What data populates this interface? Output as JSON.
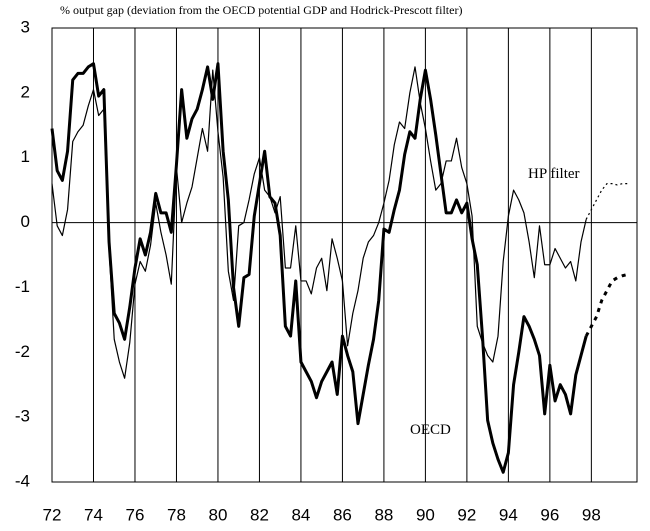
{
  "chart_data": {
    "type": "line",
    "title": "% output gap (deviation from the OECD potential GDP and Hodrick-Prescott filter)",
    "x": [
      72,
      72.25,
      72.5,
      72.75,
      73,
      73.25,
      73.5,
      73.75,
      74,
      74.25,
      74.5,
      74.75,
      75,
      75.25,
      75.5,
      75.75,
      76,
      76.25,
      76.5,
      76.75,
      77,
      77.25,
      77.5,
      77.75,
      78,
      78.25,
      78.5,
      78.75,
      79,
      79.25,
      79.5,
      79.75,
      80,
      80.25,
      80.5,
      80.75,
      81,
      81.25,
      81.5,
      81.75,
      82,
      82.25,
      82.5,
      82.75,
      83,
      83.25,
      83.5,
      83.75,
      84,
      84.25,
      84.5,
      84.75,
      85,
      85.25,
      85.5,
      85.75,
      86,
      86.25,
      86.5,
      86.75,
      87,
      87.25,
      87.5,
      87.75,
      88,
      88.25,
      88.5,
      88.75,
      89,
      89.25,
      89.5,
      89.75,
      90,
      90.25,
      90.5,
      90.75,
      91,
      91.25,
      91.5,
      91.75,
      92,
      92.25,
      92.5,
      92.75,
      93,
      93.25,
      93.5,
      93.75,
      94,
      94.25,
      94.5,
      94.75,
      95,
      95.25,
      95.5,
      95.75,
      96,
      96.25,
      96.5,
      96.75,
      97,
      97.25,
      97.5,
      97.75
    ],
    "series": [
      {
        "name": "OECD",
        "color": "#000000",
        "width": 3,
        "style": "solid",
        "values": [
          1.45,
          0.8,
          0.65,
          1.1,
          2.2,
          2.3,
          2.3,
          2.4,
          2.45,
          1.95,
          2.05,
          -0.3,
          -1.4,
          -1.55,
          -1.8,
          -1.3,
          -0.7,
          -0.25,
          -0.5,
          -0.15,
          0.45,
          0.15,
          0.15,
          -0.15,
          0.9,
          2.05,
          1.3,
          1.6,
          1.75,
          2.05,
          2.4,
          1.9,
          2.45,
          1.1,
          0.35,
          -1.0,
          -1.6,
          -0.85,
          -0.8,
          0.1,
          0.6,
          1.1,
          0.4,
          0.3,
          -0.2,
          -1.6,
          -1.75,
          -0.9,
          -2.15,
          -2.3,
          -2.45,
          -2.7,
          -2.45,
          -2.3,
          -2.15,
          -2.65,
          -1.75,
          -2.05,
          -2.3,
          -3.1,
          -2.65,
          -2.2,
          -1.8,
          -1.2,
          -0.1,
          -0.15,
          0.2,
          0.5,
          1.05,
          1.4,
          1.3,
          1.9,
          2.35,
          1.9,
          1.35,
          0.75,
          0.15,
          0.15,
          0.35,
          0.15,
          0.3,
          -0.25,
          -0.65,
          -1.75,
          -3.05,
          -3.4,
          -3.65,
          -3.85,
          -3.55,
          -2.5,
          -2.0,
          -1.45,
          -1.6,
          -1.8,
          -2.05,
          -2.95,
          -2.2,
          -2.75,
          -2.5,
          -2.65,
          -2.95,
          -2.35,
          -2.05,
          -1.75
        ]
      },
      {
        "name": "HP filter",
        "color": "#000000",
        "width": 1.2,
        "style": "solid",
        "values": [
          0.6,
          -0.05,
          -0.2,
          0.2,
          1.25,
          1.4,
          1.5,
          1.8,
          2.05,
          1.65,
          1.75,
          -0.4,
          -1.8,
          -2.15,
          -2.4,
          -1.85,
          -0.95,
          -0.6,
          -0.75,
          -0.35,
          0.3,
          -0.15,
          -0.5,
          -0.95,
          0.85,
          0.0,
          0.3,
          0.55,
          1.0,
          1.45,
          1.1,
          2.35,
          1.4,
          0.7,
          -0.75,
          -1.2,
          -0.05,
          0.0,
          0.35,
          0.75,
          1.0,
          0.5,
          0.4,
          0.15,
          0.4,
          -0.7,
          -0.7,
          -0.05,
          -0.9,
          -0.9,
          -1.1,
          -0.7,
          -0.55,
          -1.05,
          -0.25,
          -0.55,
          -0.9,
          -1.9,
          -1.4,
          -1.05,
          -0.55,
          -0.3,
          -0.2,
          0.0,
          0.3,
          0.65,
          1.2,
          1.55,
          1.45,
          2.0,
          2.4,
          1.85,
          1.45,
          0.95,
          0.5,
          0.6,
          0.95,
          0.95,
          1.3,
          0.85,
          0.6,
          0.1,
          -1.6,
          -1.85,
          -2.05,
          -2.15,
          -1.75,
          -0.6,
          0.1,
          0.5,
          0.35,
          0.15,
          -0.3,
          -0.85,
          -0.05,
          -0.65,
          -0.65,
          -0.4,
          -0.55,
          -0.7,
          -0.6,
          -0.9,
          -0.3,
          0.05
        ]
      },
      {
        "color": "#000000",
        "width": 3,
        "style": "dotted",
        "x": [
          97.75,
          98,
          98.25,
          98.5,
          98.75,
          99,
          99.25,
          99.5,
          99.75
        ],
        "values": [
          -1.75,
          -1.6,
          -1.45,
          -1.2,
          -1.05,
          -0.9,
          -0.85,
          -0.82,
          -0.8
        ]
      },
      {
        "color": "#000000",
        "width": 1.2,
        "style": "dotted",
        "x": [
          97.75,
          98,
          98.25,
          98.5,
          98.75,
          99,
          99.25,
          99.5,
          99.75
        ],
        "values": [
          0.05,
          0.2,
          0.35,
          0.5,
          0.6,
          0.6,
          0.58,
          0.6,
          0.6
        ]
      }
    ],
    "xlim": [
      72,
      100.2
    ],
    "xticks": [
      72,
      74,
      76,
      78,
      80,
      82,
      84,
      86,
      88,
      90,
      92,
      94,
      96,
      98
    ],
    "ylim": [
      -4,
      3
    ],
    "yticks": [
      -4,
      -3,
      -2,
      -1,
      0,
      1,
      2,
      3
    ],
    "grid": "x"
  }
}
